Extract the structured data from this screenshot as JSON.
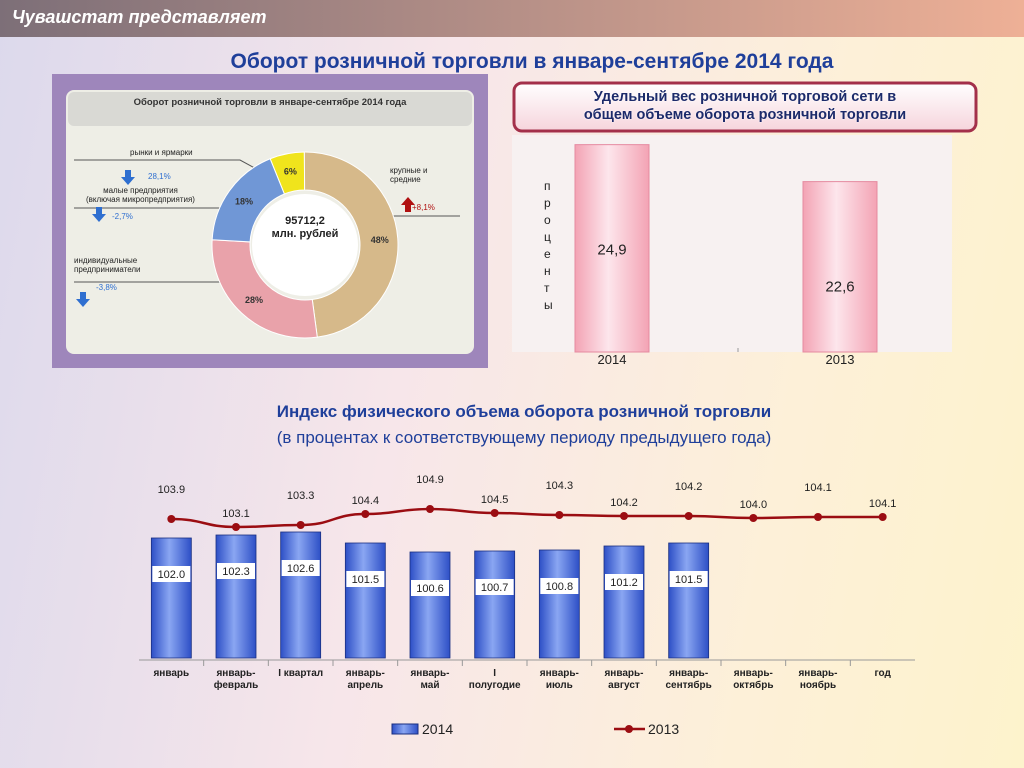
{
  "header": "Чувашстат представляет",
  "title": "Оборот розничной торговли в январе-сентябре 2014 года",
  "chart_data": [
    {
      "type": "pie",
      "title": "Оборот розничной торговли в январе-сентябре  2014 года",
      "center_label": "95712,2\nмлн. рублей",
      "categories": [
        "рынки и ярмарки",
        "крупные и\nсредние",
        "индивидуальные\nпредприниматели",
        "малые предприятия\n(включая микропредприятия)"
      ],
      "values": [
        6,
        48,
        28,
        18
      ],
      "value_labels": [
        "6%",
        "48%",
        "28%",
        "18%"
      ],
      "changes": [
        "28,1%",
        "+8,1%",
        "-3,8%",
        "-2,7%"
      ],
      "colors": [
        "#f0e41c",
        "#d6b98a",
        "#e9a2aa",
        "#7097d6"
      ]
    },
    {
      "type": "bar",
      "title": "Удельный вес розничной торговой сети в\nобщем объеме оборота розничной  торговли",
      "y_label": "проценты",
      "categories": [
        "2014",
        "2013"
      ],
      "values": [
        24.9,
        22.6
      ],
      "value_labels": [
        "24,9",
        "22,6"
      ],
      "color": "#f3a3b4",
      "ylim": [
        12,
        25.5
      ]
    },
    {
      "type": "combo",
      "title": "Индекс физического объема оборота розничной торговли",
      "subtitle": "(в процентах к соответствующему периоду предыдущего года)",
      "categories": [
        "январь",
        "январь-\nфевраль",
        "I квартал",
        "январь-\nапрель",
        "январь-\nмай",
        "I\nполугодие",
        "январь-\nиюль",
        "январь-\nавгуст",
        "январь-\nсентябрь",
        "январь-\nоктябрь",
        "январь-\nноябрь",
        "год"
      ],
      "series": [
        {
          "name": "2014",
          "kind": "bar",
          "color": "#2d4fc6",
          "values": [
            102.0,
            102.3,
            102.6,
            101.5,
            100.6,
            100.7,
            100.8,
            101.2,
            101.5,
            null,
            null,
            null
          ],
          "value_labels": [
            "102.0",
            "102.3",
            "102.6",
            "101.5",
            "100.6",
            "100.7",
            "100.8",
            "101.2",
            "101.5",
            null,
            null,
            null
          ]
        },
        {
          "name": "2013",
          "kind": "line",
          "color": "#9b0d12",
          "values": [
            103.9,
            103.1,
            103.3,
            104.4,
            104.9,
            104.5,
            104.3,
            104.2,
            104.2,
            104.0,
            104.1,
            104.1
          ],
          "value_labels": [
            "103.9",
            "103.1",
            "103.3",
            "104.4",
            "104.9",
            "104.5",
            "104.3",
            "104.2",
            "104.2",
            "104.0",
            "104.1",
            "104.1"
          ]
        }
      ],
      "ylim": [
        90,
        108
      ]
    }
  ]
}
